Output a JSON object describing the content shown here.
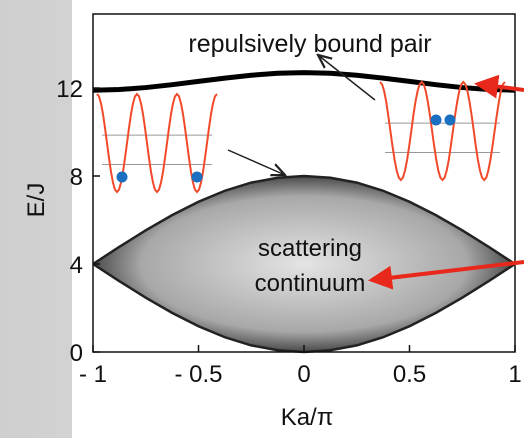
{
  "chart_data": {
    "type": "band",
    "xlabel": "Ka/π",
    "ylabel": "E/J",
    "annotations": [
      "repulsively bound pair",
      "scattering",
      "continuum"
    ],
    "x": [
      -1,
      -0.875,
      -0.75,
      -0.625,
      -0.5,
      -0.375,
      -0.25,
      -0.125,
      0,
      0.125,
      0.25,
      0.375,
      0.5,
      0.625,
      0.75,
      0.875,
      1
    ],
    "bound": {
      "color": "#000000",
      "values": [
        11.9,
        11.93,
        12.02,
        12.15,
        12.3,
        12.45,
        12.58,
        12.67,
        12.7,
        12.67,
        12.58,
        12.45,
        12.3,
        12.15,
        12.02,
        11.93,
        11.9
      ]
    },
    "continuum": {
      "color": "#222222",
      "upper": [
        4,
        4.78,
        5.53,
        6.22,
        6.83,
        7.33,
        7.7,
        7.92,
        8,
        7.92,
        7.7,
        7.33,
        6.83,
        6.22,
        5.53,
        4.78,
        4
      ],
      "lower": [
        4,
        3.22,
        2.47,
        1.78,
        1.17,
        0.67,
        0.3,
        0.08,
        0,
        0.08,
        0.3,
        0.67,
        1.17,
        1.78,
        2.47,
        3.22,
        4
      ]
    },
    "xlim": [
      -1,
      1
    ],
    "ylim": [
      0,
      15
    ],
    "xticks": [
      {
        "value": -1,
        "label": "- 1"
      },
      {
        "value": -0.5,
        "label": "- 0.5"
      },
      0,
      0.5,
      1
    ],
    "yticks": [
      0,
      4,
      8,
      12
    ]
  }
}
